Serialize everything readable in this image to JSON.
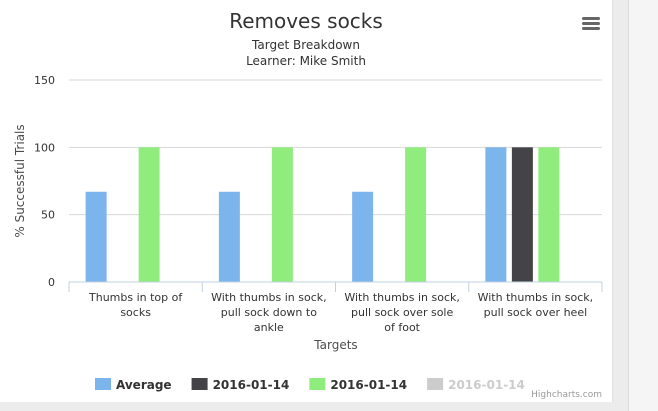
{
  "chart_data": {
    "type": "bar",
    "title": "Removes socks",
    "subtitle_lines": [
      "Target Breakdown",
      "Learner: Mike Smith"
    ],
    "xlabel": "Targets",
    "ylabel": "% Successful Trials",
    "ylim": [
      0,
      150
    ],
    "yticks": [
      0,
      50,
      100,
      150
    ],
    "categories": [
      [
        "Thumbs in top of",
        "socks"
      ],
      [
        "With thumbs in sock,",
        "pull sock down to",
        "ankle"
      ],
      [
        "With thumbs in sock,",
        "pull sock over sole",
        "of foot"
      ],
      [
        "With thumbs in sock,",
        "pull sock over heel"
      ]
    ],
    "series": [
      {
        "name": "Average",
        "color": "#7cb5ec",
        "values": [
          67,
          67,
          67,
          100
        ],
        "visible": true
      },
      {
        "name": "2016-01-14",
        "color": "#434348",
        "values": [
          null,
          null,
          null,
          100
        ],
        "visible": true
      },
      {
        "name": "2016-01-14",
        "color": "#90ed7d",
        "values": [
          100,
          100,
          100,
          100
        ],
        "visible": true
      },
      {
        "name": "2016-01-14",
        "color": "#cccccc",
        "values": [
          null,
          null,
          null,
          null
        ],
        "visible": false
      }
    ],
    "grid": true,
    "legend_position": "bottom"
  },
  "credits": "Highcharts.com",
  "icons": {
    "menu": "hamburger-menu-icon"
  }
}
